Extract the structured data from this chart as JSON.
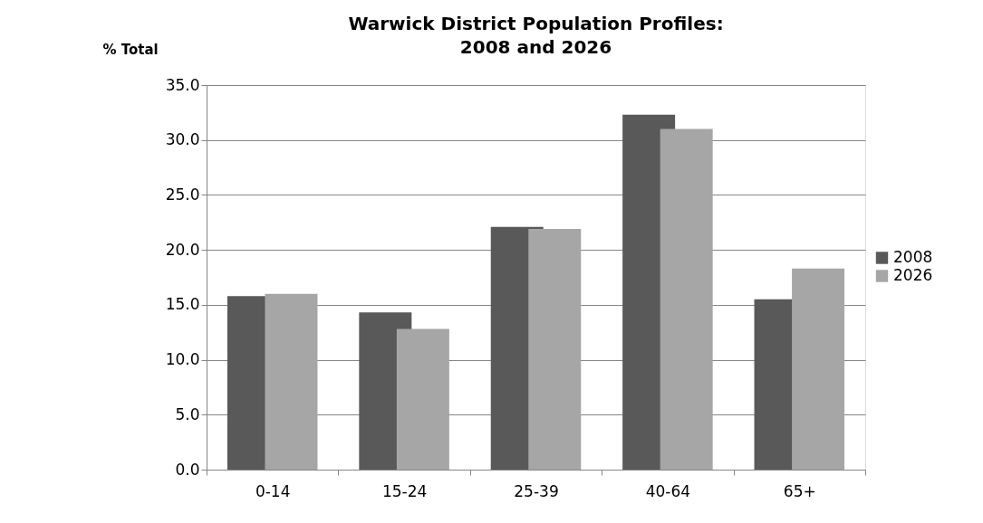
{
  "chart_data": {
    "type": "bar",
    "title": "Warwick District Population Profiles:\n2008 and 2026",
    "ylabel": "% Total",
    "categories": [
      "0-14",
      "15-24",
      "25-39",
      "40-64",
      "65+"
    ],
    "series": [
      {
        "name": "2008",
        "color": "#595959",
        "values": [
          15.8,
          14.3,
          22.1,
          32.3,
          15.5
        ]
      },
      {
        "name": "2026",
        "color": "#a6a6a6",
        "values": [
          16.0,
          12.8,
          21.9,
          31.0,
          18.3
        ]
      }
    ],
    "ylim": [
      0,
      35
    ],
    "yticks": [
      {
        "value": 0,
        "label": "0.0"
      },
      {
        "value": 5,
        "label": "5.0"
      },
      {
        "value": 10,
        "label": "10.0"
      },
      {
        "value": 15,
        "label": "15.0"
      },
      {
        "value": 20,
        "label": "20.0"
      },
      {
        "value": 25,
        "label": "25.0"
      },
      {
        "value": 30,
        "label": "30.0"
      },
      {
        "value": 35,
        "label": "35.0"
      }
    ],
    "grid": "y",
    "legend": "right"
  }
}
